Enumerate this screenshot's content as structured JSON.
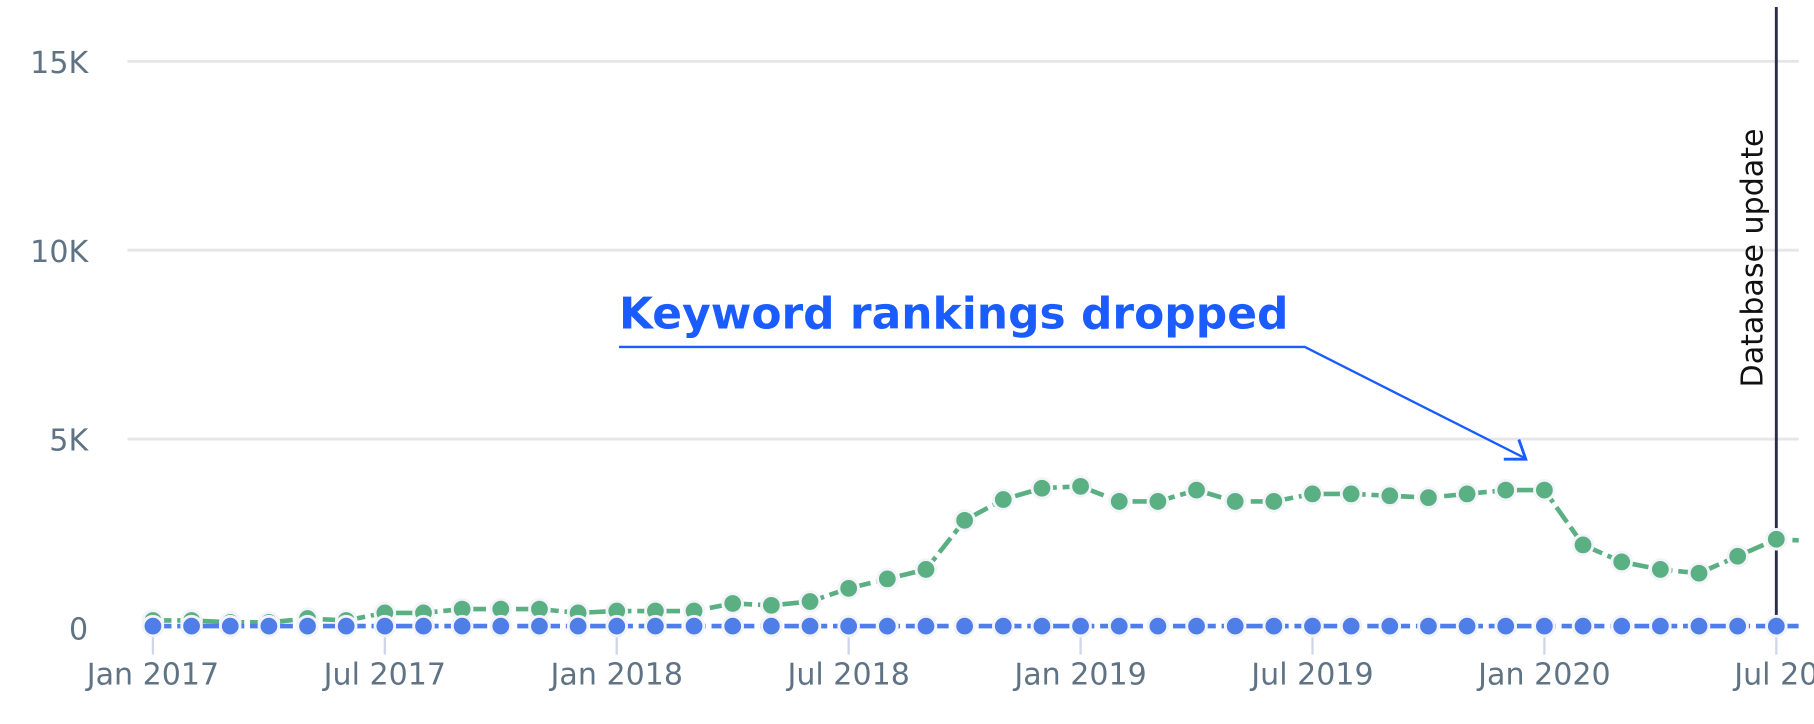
{
  "chart_data": {
    "type": "line",
    "title": "",
    "xlabel": "",
    "ylabel": "",
    "ylim": [
      0,
      15000
    ],
    "grid": true,
    "y_ticks": [
      {
        "value": 0,
        "label": "0"
      },
      {
        "value": 5000,
        "label": "5K"
      },
      {
        "value": 10000,
        "label": "10K"
      },
      {
        "value": 15000,
        "label": "15K"
      }
    ],
    "x_ticks": [
      {
        "month": "2017-01",
        "label": "Jan 2017"
      },
      {
        "month": "2017-07",
        "label": "Jul 2017"
      },
      {
        "month": "2018-01",
        "label": "Jan 2018"
      },
      {
        "month": "2018-07",
        "label": "Jul 2018"
      },
      {
        "month": "2019-01",
        "label": "Jan 2019"
      },
      {
        "month": "2019-07",
        "label": "Jul 2019"
      },
      {
        "month": "2020-01",
        "label": "Jan 2020"
      },
      {
        "month": "2020-07",
        "label": "Jul 20"
      }
    ],
    "x": [
      "2017-01",
      "2017-02",
      "2017-03",
      "2017-04",
      "2017-05",
      "2017-06",
      "2017-07",
      "2017-08",
      "2017-09",
      "2017-10",
      "2017-11",
      "2017-12",
      "2018-01",
      "2018-02",
      "2018-03",
      "2018-04",
      "2018-05",
      "2018-06",
      "2018-07",
      "2018-08",
      "2018-09",
      "2018-10",
      "2018-11",
      "2018-12",
      "2019-01",
      "2019-02",
      "2019-03",
      "2019-04",
      "2019-05",
      "2019-06",
      "2019-07",
      "2019-08",
      "2019-09",
      "2019-10",
      "2019-11",
      "2019-12",
      "2020-01",
      "2020-02",
      "2020-03",
      "2020-04",
      "2020-05",
      "2020-06",
      "2020-07",
      "2020-08"
    ],
    "series": [
      {
        "color": "#5bb083",
        "values": [
          200,
          200,
          150,
          150,
          250,
          200,
          400,
          400,
          500,
          500,
          500,
          400,
          450,
          450,
          450,
          650,
          600,
          700,
          1050,
          1300,
          1550,
          2850,
          3400,
          3700,
          3750,
          3350,
          3350,
          3650,
          3350,
          3350,
          3550,
          3550,
          3500,
          3450,
          3550,
          3650,
          3650,
          2200,
          1750,
          1550,
          1450,
          1900,
          2350,
          2300
        ]
      },
      {
        "color": "#4f7ee8",
        "values": [
          50,
          50,
          50,
          50,
          50,
          50,
          50,
          50,
          50,
          50,
          50,
          50,
          50,
          50,
          50,
          50,
          50,
          50,
          50,
          50,
          50,
          50,
          50,
          50,
          50,
          50,
          50,
          50,
          50,
          50,
          50,
          50,
          50,
          50,
          50,
          50,
          50,
          50,
          50,
          50,
          50,
          50,
          50,
          50
        ]
      }
    ],
    "annotations": [
      {
        "text": "Keyword rankings dropped",
        "color": "#1a5cff",
        "points_to": "2020-01"
      },
      {
        "text": "Database update",
        "type": "vertical-line",
        "at": "2020-07",
        "color": "#2b2d4a"
      }
    ]
  }
}
